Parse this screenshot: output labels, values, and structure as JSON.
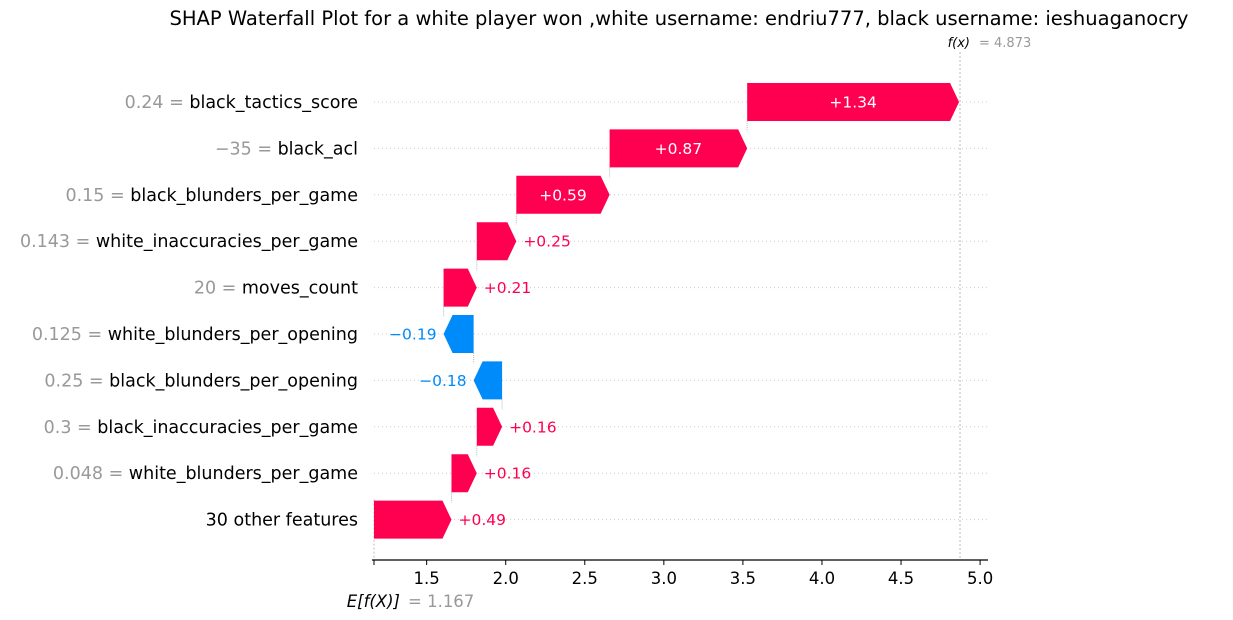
{
  "chart_data": {
    "type": "waterfall",
    "title": "SHAP Waterfall Plot for a white player won ,white username: endriu777, black username: ieshuaganocry",
    "base_value": 1.167,
    "base_label_math": "E[f(X)]",
    "base_value_text": "= 1.167",
    "output_value": 4.873,
    "output_label_math": "f(x)",
    "output_value_text": "= 4.873",
    "xlim": [
      1.167,
      5.05
    ],
    "xticks": [
      1.5,
      2.0,
      2.5,
      3.0,
      3.5,
      4.0,
      4.5,
      5.0
    ],
    "xtick_labels": [
      "1.5",
      "2.0",
      "2.5",
      "3.0",
      "3.5",
      "4.0",
      "4.5",
      "5.0"
    ],
    "colors": {
      "positive": "#ff0051",
      "negative": "#008bfb",
      "value_text": "#999999"
    },
    "features": [
      {
        "value": "0.24",
        "name": "black_tactics_score",
        "shap": 1.34,
        "label": "+1.34"
      },
      {
        "value": "−35",
        "name": "black_acl",
        "shap": 0.87,
        "label": "+0.87"
      },
      {
        "value": "0.15",
        "name": "black_blunders_per_game",
        "shap": 0.59,
        "label": "+0.59"
      },
      {
        "value": "0.143",
        "name": "white_inaccuracies_per_game",
        "shap": 0.25,
        "label": "+0.25"
      },
      {
        "value": "20",
        "name": "moves_count",
        "shap": 0.21,
        "label": "+0.21"
      },
      {
        "value": "0.125",
        "name": "white_blunders_per_opening",
        "shap": -0.19,
        "label": "−0.19"
      },
      {
        "value": "0.25",
        "name": "black_blunders_per_opening",
        "shap": -0.18,
        "label": "−0.18"
      },
      {
        "value": "0.3",
        "name": "black_inaccuracies_per_game",
        "shap": 0.16,
        "label": "+0.16"
      },
      {
        "value": "0.048",
        "name": "white_blunders_per_game",
        "shap": 0.16,
        "label": "+0.16"
      },
      {
        "value": "",
        "name": "30 other features",
        "shap": 0.49,
        "label": "+0.49"
      }
    ]
  }
}
